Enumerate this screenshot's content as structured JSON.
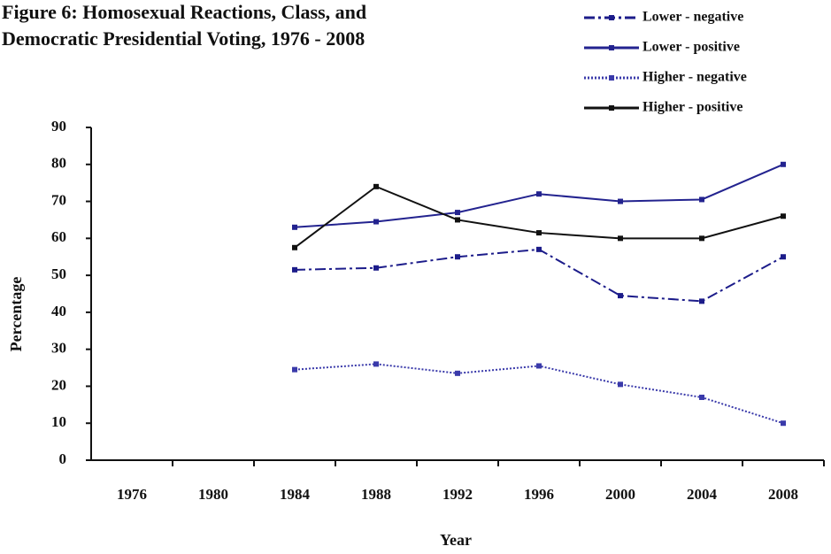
{
  "chart_data": {
    "type": "line",
    "title": [
      "Figure 6: Homosexual Reactions, Class, and",
      "Democratic Presidential Voting, 1976 - 2008"
    ],
    "x_label": "Year",
    "y_label": "Percentage",
    "categories": [
      "1976",
      "1980",
      "1984",
      "1988",
      "1992",
      "1996",
      "2000",
      "2004",
      "2008"
    ],
    "series": [
      {
        "name": "Lower - negative",
        "color": "#1c1c8a",
        "style": "dashdot",
        "values": [
          null,
          null,
          51.5,
          52,
          55,
          57,
          44.5,
          43,
          55
        ]
      },
      {
        "name": "Lower - positive",
        "color": "#23238f",
        "style": "solid",
        "values": [
          null,
          null,
          63,
          64.5,
          67,
          72,
          70,
          70.5,
          80
        ]
      },
      {
        "name": "Higher - negative",
        "color": "#3a3aaa",
        "style": "dotted",
        "values": [
          null,
          null,
          24.5,
          26,
          23.5,
          25.5,
          20.5,
          17,
          10
        ]
      },
      {
        "name": "Higher - positive",
        "color": "#111111",
        "style": "solid",
        "values": [
          null,
          null,
          57.5,
          74,
          65,
          61.5,
          60,
          60,
          66
        ]
      }
    ],
    "ylim": [
      0,
      90
    ],
    "yticks": [
      0,
      10,
      20,
      30,
      40,
      50,
      60,
      70,
      80,
      90
    ],
    "grid": false,
    "legend": "top-right"
  }
}
